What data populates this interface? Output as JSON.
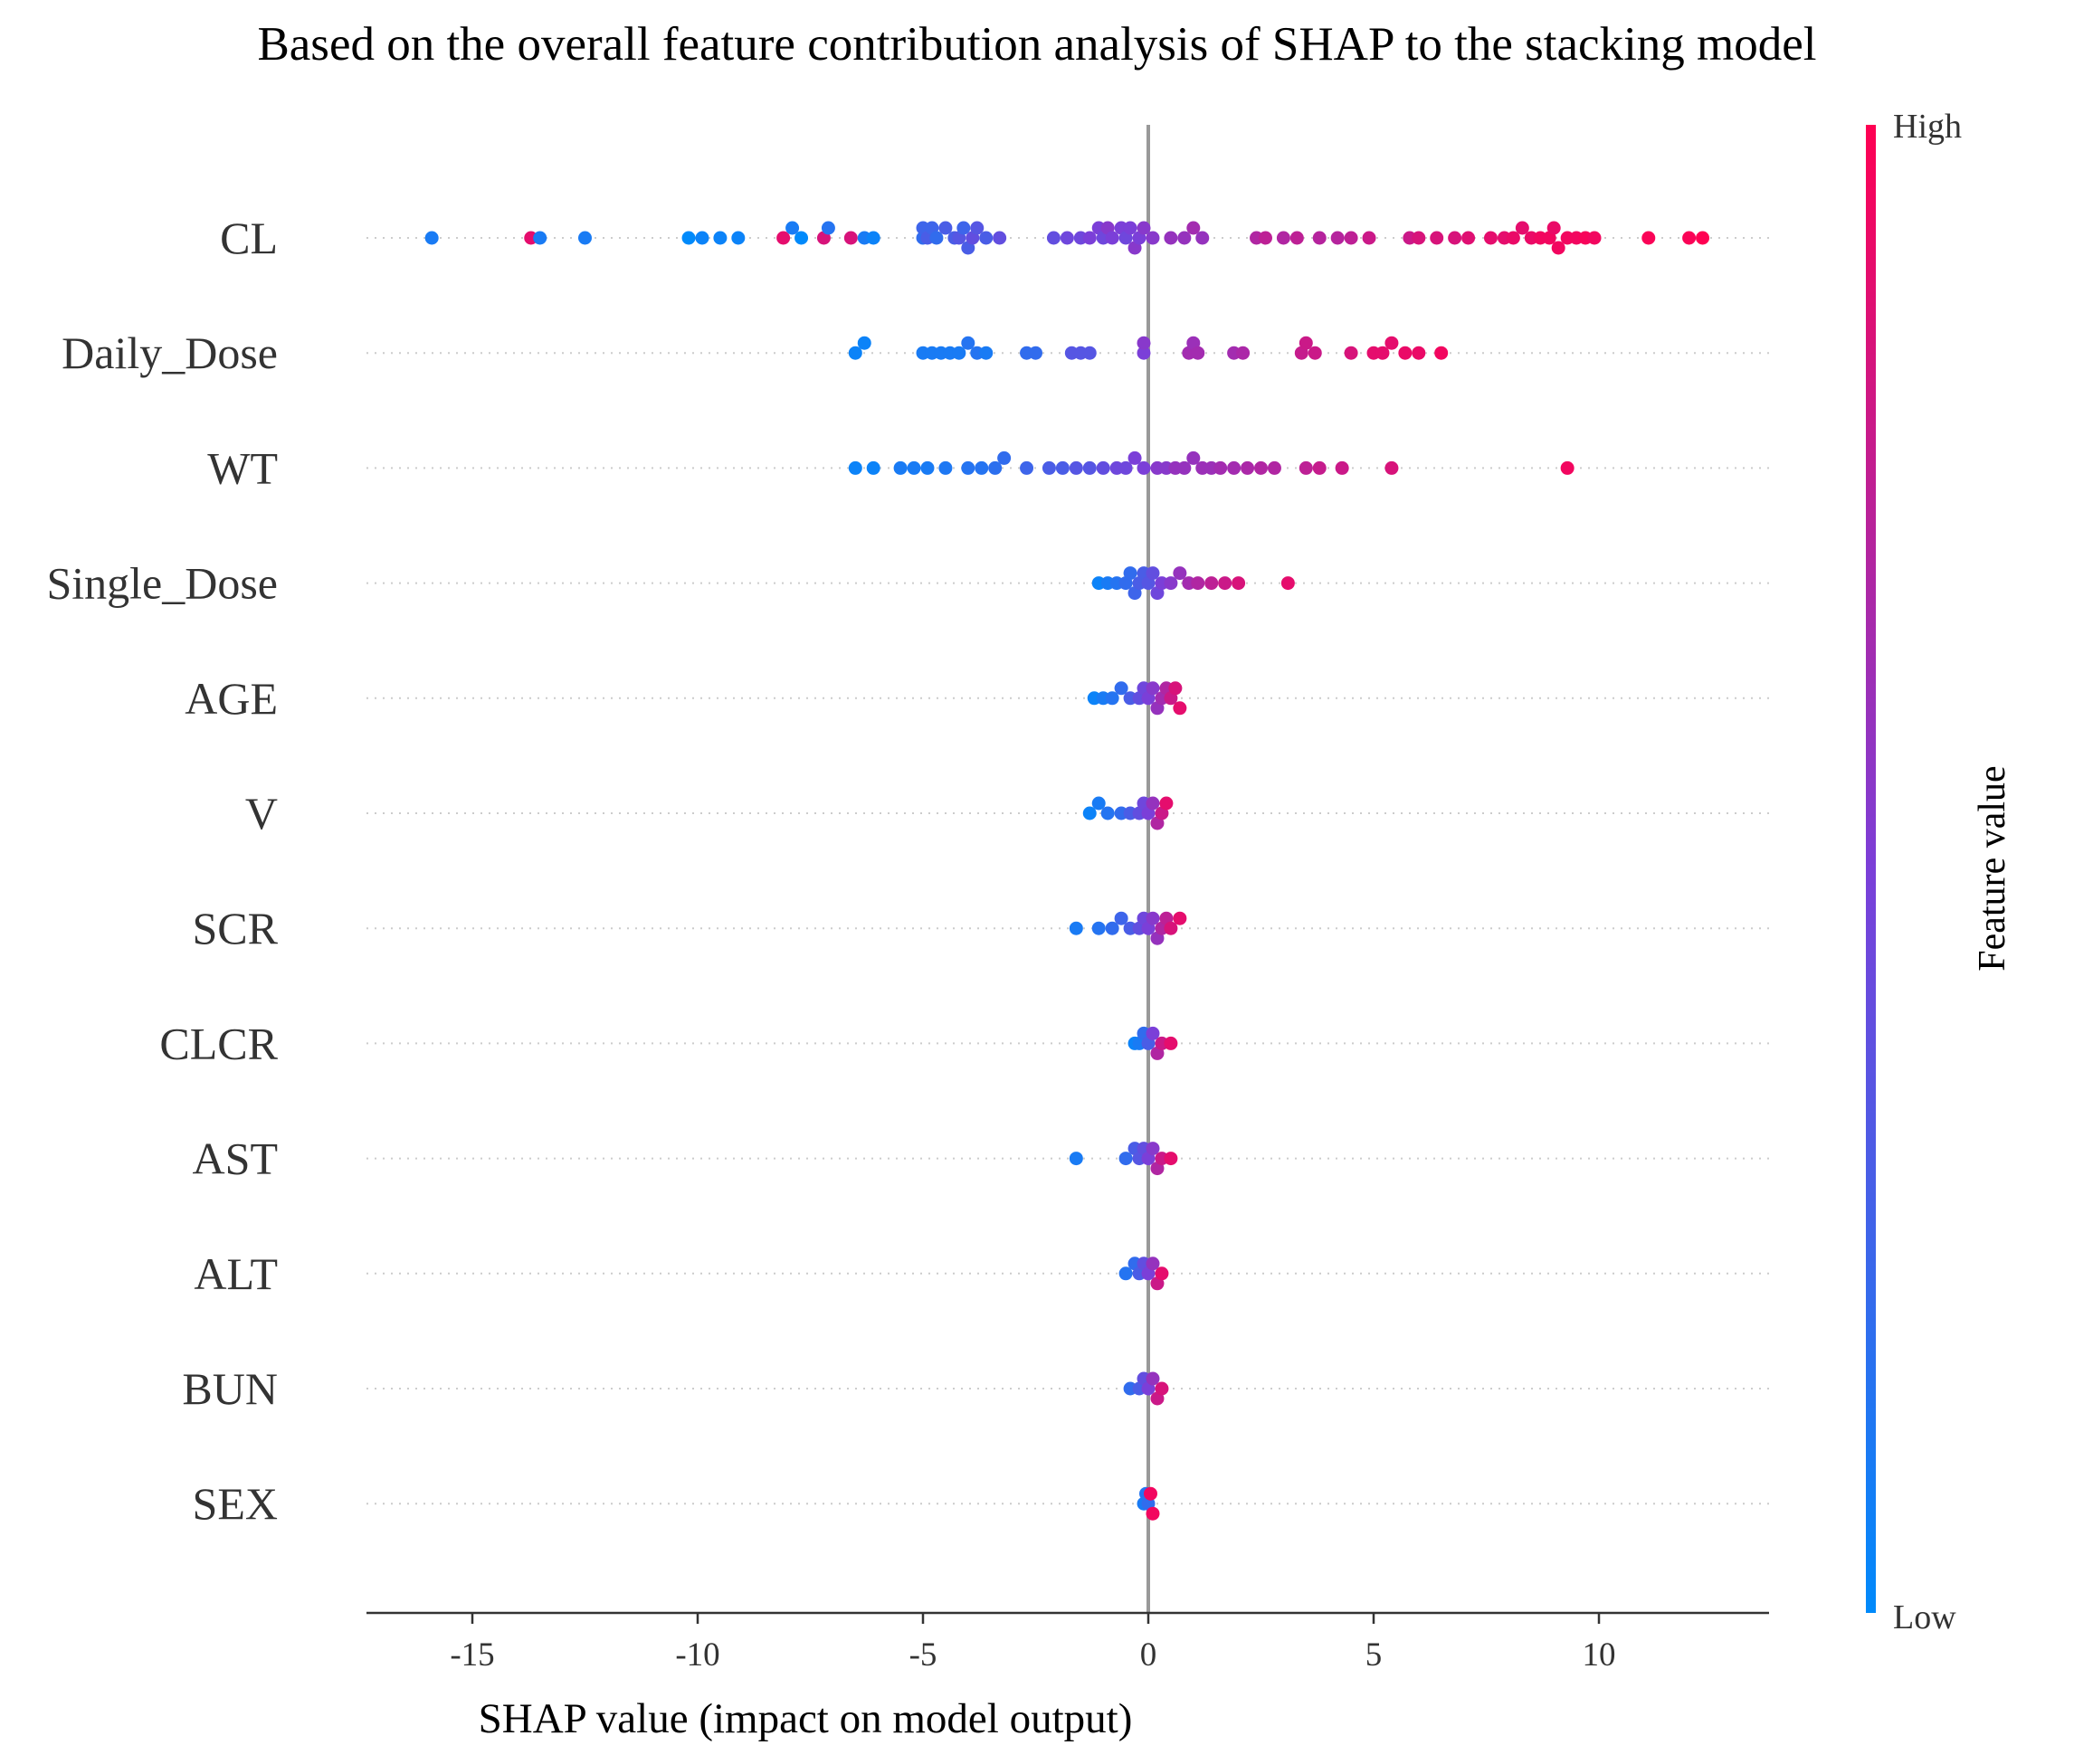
{
  "chart_data": {
    "type": "scatter",
    "subtype": "shap-beeswarm",
    "title": "Based on the overall feature contribution analysis of SHAP to the stacking model",
    "xlabel": "SHAP value (impact on model output)",
    "xlim": [
      -17.5,
      13.8
    ],
    "xticks": [
      -15,
      -10,
      -5,
      0,
      5,
      10
    ],
    "xtick_labels": [
      "-15",
      "-10",
      "-5",
      "0",
      "5",
      "10"
    ],
    "zero_line": true,
    "grid": false,
    "colorbar": {
      "title": "Feature value",
      "high_label": "High",
      "low_label": "Low",
      "low_color": "#008afb",
      "mid_color": "#7b3fd8",
      "high_color": "#ff0052"
    },
    "features": [
      {
        "name": "CL",
        "points": [
          [
            -15.9,
            0.1
          ],
          [
            -13.7,
            0.9
          ],
          [
            -13.5,
            0.1
          ],
          [
            -12.5,
            0.1
          ],
          [
            -10.2,
            0.0
          ],
          [
            -9.9,
            0.05
          ],
          [
            -9.5,
            0.05
          ],
          [
            -9.1,
            0.05
          ],
          [
            -8.1,
            0.9
          ],
          [
            -7.9,
            0.1
          ],
          [
            -7.7,
            0.0
          ],
          [
            -7.2,
            0.85
          ],
          [
            -7.1,
            0.15
          ],
          [
            -6.6,
            0.85
          ],
          [
            -6.3,
            0.1
          ],
          [
            -6.1,
            0.05
          ],
          [
            -5.0,
            0.2
          ],
          [
            -5.0,
            0.25
          ],
          [
            -4.9,
            0.3
          ],
          [
            -4.8,
            0.25
          ],
          [
            -4.7,
            0.2
          ],
          [
            -4.5,
            0.3
          ],
          [
            -4.3,
            0.3
          ],
          [
            -4.2,
            0.35
          ],
          [
            -4.1,
            0.25
          ],
          [
            -4.0,
            0.3
          ],
          [
            -3.9,
            0.4
          ],
          [
            -3.8,
            0.35
          ],
          [
            -3.6,
            0.3
          ],
          [
            -3.3,
            0.4
          ],
          [
            -2.1,
            0.4
          ],
          [
            -1.8,
            0.45
          ],
          [
            -1.5,
            0.45
          ],
          [
            -1.3,
            0.5
          ],
          [
            -1.1,
            0.5
          ],
          [
            -1.0,
            0.45
          ],
          [
            -0.9,
            0.55
          ],
          [
            -0.8,
            0.5
          ],
          [
            -0.6,
            0.5
          ],
          [
            -0.5,
            0.45
          ],
          [
            -0.4,
            0.5
          ],
          [
            -0.3,
            0.55
          ],
          [
            -0.2,
            0.5
          ],
          [
            -0.1,
            0.55
          ],
          [
            0.1,
            0.55
          ],
          [
            0.5,
            0.6
          ],
          [
            0.8,
            0.6
          ],
          [
            1.0,
            0.65
          ],
          [
            1.2,
            0.6
          ],
          [
            2.4,
            0.7
          ],
          [
            2.6,
            0.75
          ],
          [
            3.0,
            0.7
          ],
          [
            3.3,
            0.75
          ],
          [
            3.8,
            0.72
          ],
          [
            4.2,
            0.72
          ],
          [
            4.5,
            0.75
          ],
          [
            4.9,
            0.8
          ],
          [
            5.8,
            0.8
          ],
          [
            6.0,
            0.85
          ],
          [
            6.4,
            0.85
          ],
          [
            6.8,
            0.85
          ],
          [
            7.1,
            0.88
          ],
          [
            7.6,
            0.9
          ],
          [
            7.9,
            0.9
          ],
          [
            8.1,
            0.92
          ],
          [
            8.3,
            0.9
          ],
          [
            8.5,
            0.92
          ],
          [
            8.7,
            0.95
          ],
          [
            8.9,
            0.95
          ],
          [
            9.0,
            0.92
          ],
          [
            9.1,
            0.95
          ],
          [
            9.3,
            0.95
          ],
          [
            9.5,
            0.95
          ],
          [
            9.7,
            0.97
          ],
          [
            9.9,
            0.95
          ],
          [
            11.1,
            0.98
          ],
          [
            12.0,
            0.98
          ],
          [
            12.3,
            1.0
          ]
        ]
      },
      {
        "name": "Daily_Dose",
        "points": [
          [
            -6.5,
            0.05
          ],
          [
            -6.3,
            0.05
          ],
          [
            -5.0,
            0.1
          ],
          [
            -4.8,
            0.1
          ],
          [
            -4.6,
            0.1
          ],
          [
            -4.4,
            0.1
          ],
          [
            -4.2,
            0.1
          ],
          [
            -4.0,
            0.15
          ],
          [
            -3.8,
            0.15
          ],
          [
            -3.6,
            0.1
          ],
          [
            -2.7,
            0.2
          ],
          [
            -2.5,
            0.2
          ],
          [
            -1.7,
            0.35
          ],
          [
            -1.5,
            0.35
          ],
          [
            -1.3,
            0.35
          ],
          [
            -0.1,
            0.5
          ],
          [
            -0.1,
            0.55
          ],
          [
            0.9,
            0.65
          ],
          [
            1.0,
            0.62
          ],
          [
            1.1,
            0.65
          ],
          [
            1.9,
            0.65
          ],
          [
            2.1,
            0.68
          ],
          [
            3.4,
            0.78
          ],
          [
            3.5,
            0.8
          ],
          [
            3.7,
            0.8
          ],
          [
            4.5,
            0.85
          ],
          [
            5.0,
            0.9
          ],
          [
            5.2,
            0.9
          ],
          [
            5.4,
            0.9
          ],
          [
            5.7,
            0.92
          ],
          [
            6.0,
            0.92
          ],
          [
            6.5,
            0.95
          ]
        ]
      },
      {
        "name": "WT",
        "points": [
          [
            -6.5,
            0.05
          ],
          [
            -6.1,
            0.05
          ],
          [
            -5.5,
            0.1
          ],
          [
            -5.2,
            0.1
          ],
          [
            -4.9,
            0.1
          ],
          [
            -4.5,
            0.12
          ],
          [
            -4.0,
            0.15
          ],
          [
            -3.7,
            0.15
          ],
          [
            -3.4,
            0.18
          ],
          [
            -3.2,
            0.2
          ],
          [
            -2.7,
            0.25
          ],
          [
            -2.2,
            0.3
          ],
          [
            -1.9,
            0.3
          ],
          [
            -1.6,
            0.35
          ],
          [
            -1.3,
            0.35
          ],
          [
            -1.0,
            0.4
          ],
          [
            -0.7,
            0.45
          ],
          [
            -0.5,
            0.45
          ],
          [
            -0.3,
            0.5
          ],
          [
            -0.1,
            0.5
          ],
          [
            0.2,
            0.55
          ],
          [
            0.4,
            0.55
          ],
          [
            0.6,
            0.6
          ],
          [
            0.8,
            0.6
          ],
          [
            1.0,
            0.6
          ],
          [
            1.2,
            0.62
          ],
          [
            1.4,
            0.62
          ],
          [
            1.6,
            0.65
          ],
          [
            1.9,
            0.65
          ],
          [
            2.2,
            0.68
          ],
          [
            2.5,
            0.7
          ],
          [
            2.8,
            0.7
          ],
          [
            3.5,
            0.75
          ],
          [
            3.8,
            0.78
          ],
          [
            4.3,
            0.8
          ],
          [
            5.4,
            0.85
          ],
          [
            9.3,
            0.95
          ]
        ]
      },
      {
        "name": "Single_Dose",
        "points": [
          [
            -1.1,
            0.05
          ],
          [
            -0.9,
            0.1
          ],
          [
            -0.7,
            0.15
          ],
          [
            -0.5,
            0.2
          ],
          [
            -0.4,
            0.2
          ],
          [
            -0.3,
            0.25
          ],
          [
            -0.2,
            0.3
          ],
          [
            -0.1,
            0.3
          ],
          [
            0.0,
            0.35
          ],
          [
            0.1,
            0.4
          ],
          [
            0.2,
            0.45
          ],
          [
            0.3,
            0.5
          ],
          [
            0.5,
            0.55
          ],
          [
            0.7,
            0.6
          ],
          [
            0.9,
            0.65
          ],
          [
            1.1,
            0.7
          ],
          [
            1.4,
            0.75
          ],
          [
            1.7,
            0.8
          ],
          [
            2.0,
            0.85
          ],
          [
            3.1,
            0.9
          ]
        ]
      },
      {
        "name": "AGE",
        "points": [
          [
            -1.2,
            0.05
          ],
          [
            -1.0,
            0.1
          ],
          [
            -0.8,
            0.15
          ],
          [
            -0.6,
            0.2
          ],
          [
            -0.4,
            0.3
          ],
          [
            -0.2,
            0.4
          ],
          [
            -0.1,
            0.45
          ],
          [
            0.0,
            0.5
          ],
          [
            0.1,
            0.55
          ],
          [
            0.2,
            0.6
          ],
          [
            0.3,
            0.65
          ],
          [
            0.4,
            0.7
          ],
          [
            0.5,
            0.8
          ],
          [
            0.6,
            0.85
          ],
          [
            0.7,
            0.9
          ]
        ]
      },
      {
        "name": "V",
        "points": [
          [
            -1.3,
            0.05
          ],
          [
            -1.1,
            0.1
          ],
          [
            -0.9,
            0.15
          ],
          [
            -0.6,
            0.2
          ],
          [
            -0.4,
            0.3
          ],
          [
            -0.2,
            0.4
          ],
          [
            -0.1,
            0.45
          ],
          [
            0.0,
            0.5
          ],
          [
            0.1,
            0.6
          ],
          [
            0.2,
            0.7
          ],
          [
            0.3,
            0.8
          ],
          [
            0.4,
            0.9
          ]
        ]
      },
      {
        "name": "SCR",
        "points": [
          [
            -1.6,
            0.1
          ],
          [
            -1.1,
            0.15
          ],
          [
            -0.8,
            0.2
          ],
          [
            -0.6,
            0.25
          ],
          [
            -0.4,
            0.3
          ],
          [
            -0.2,
            0.4
          ],
          [
            -0.1,
            0.45
          ],
          [
            0.0,
            0.5
          ],
          [
            0.1,
            0.55
          ],
          [
            0.2,
            0.6
          ],
          [
            0.3,
            0.7
          ],
          [
            0.4,
            0.75
          ],
          [
            0.5,
            0.85
          ],
          [
            0.7,
            0.9
          ]
        ]
      },
      {
        "name": "CLCR",
        "points": [
          [
            -0.3,
            0.05
          ],
          [
            -0.2,
            0.1
          ],
          [
            -0.1,
            0.2
          ],
          [
            0.0,
            0.3
          ],
          [
            0.1,
            0.5
          ],
          [
            0.2,
            0.7
          ],
          [
            0.3,
            0.8
          ],
          [
            0.5,
            0.9
          ]
        ]
      },
      {
        "name": "AST",
        "points": [
          [
            -1.6,
            0.1
          ],
          [
            -0.5,
            0.2
          ],
          [
            -0.3,
            0.3
          ],
          [
            -0.2,
            0.35
          ],
          [
            -0.1,
            0.4
          ],
          [
            0.0,
            0.5
          ],
          [
            0.1,
            0.55
          ],
          [
            0.2,
            0.7
          ],
          [
            0.3,
            0.8
          ],
          [
            0.5,
            0.9
          ]
        ]
      },
      {
        "name": "ALT",
        "points": [
          [
            -0.5,
            0.15
          ],
          [
            -0.3,
            0.2
          ],
          [
            -0.2,
            0.3
          ],
          [
            -0.1,
            0.4
          ],
          [
            0.0,
            0.5
          ],
          [
            0.1,
            0.6
          ],
          [
            0.2,
            0.8
          ],
          [
            0.3,
            0.9
          ]
        ]
      },
      {
        "name": "BUN",
        "points": [
          [
            -0.4,
            0.2
          ],
          [
            -0.2,
            0.3
          ],
          [
            -0.1,
            0.4
          ],
          [
            0.0,
            0.5
          ],
          [
            0.1,
            0.6
          ],
          [
            0.2,
            0.8
          ],
          [
            0.3,
            0.85
          ]
        ]
      },
      {
        "name": "SEX",
        "points": [
          [
            -0.1,
            0.1
          ],
          [
            -0.05,
            0.15
          ],
          [
            0.0,
            0.2
          ],
          [
            0.05,
            0.95
          ],
          [
            0.1,
            0.95
          ]
        ]
      }
    ]
  }
}
